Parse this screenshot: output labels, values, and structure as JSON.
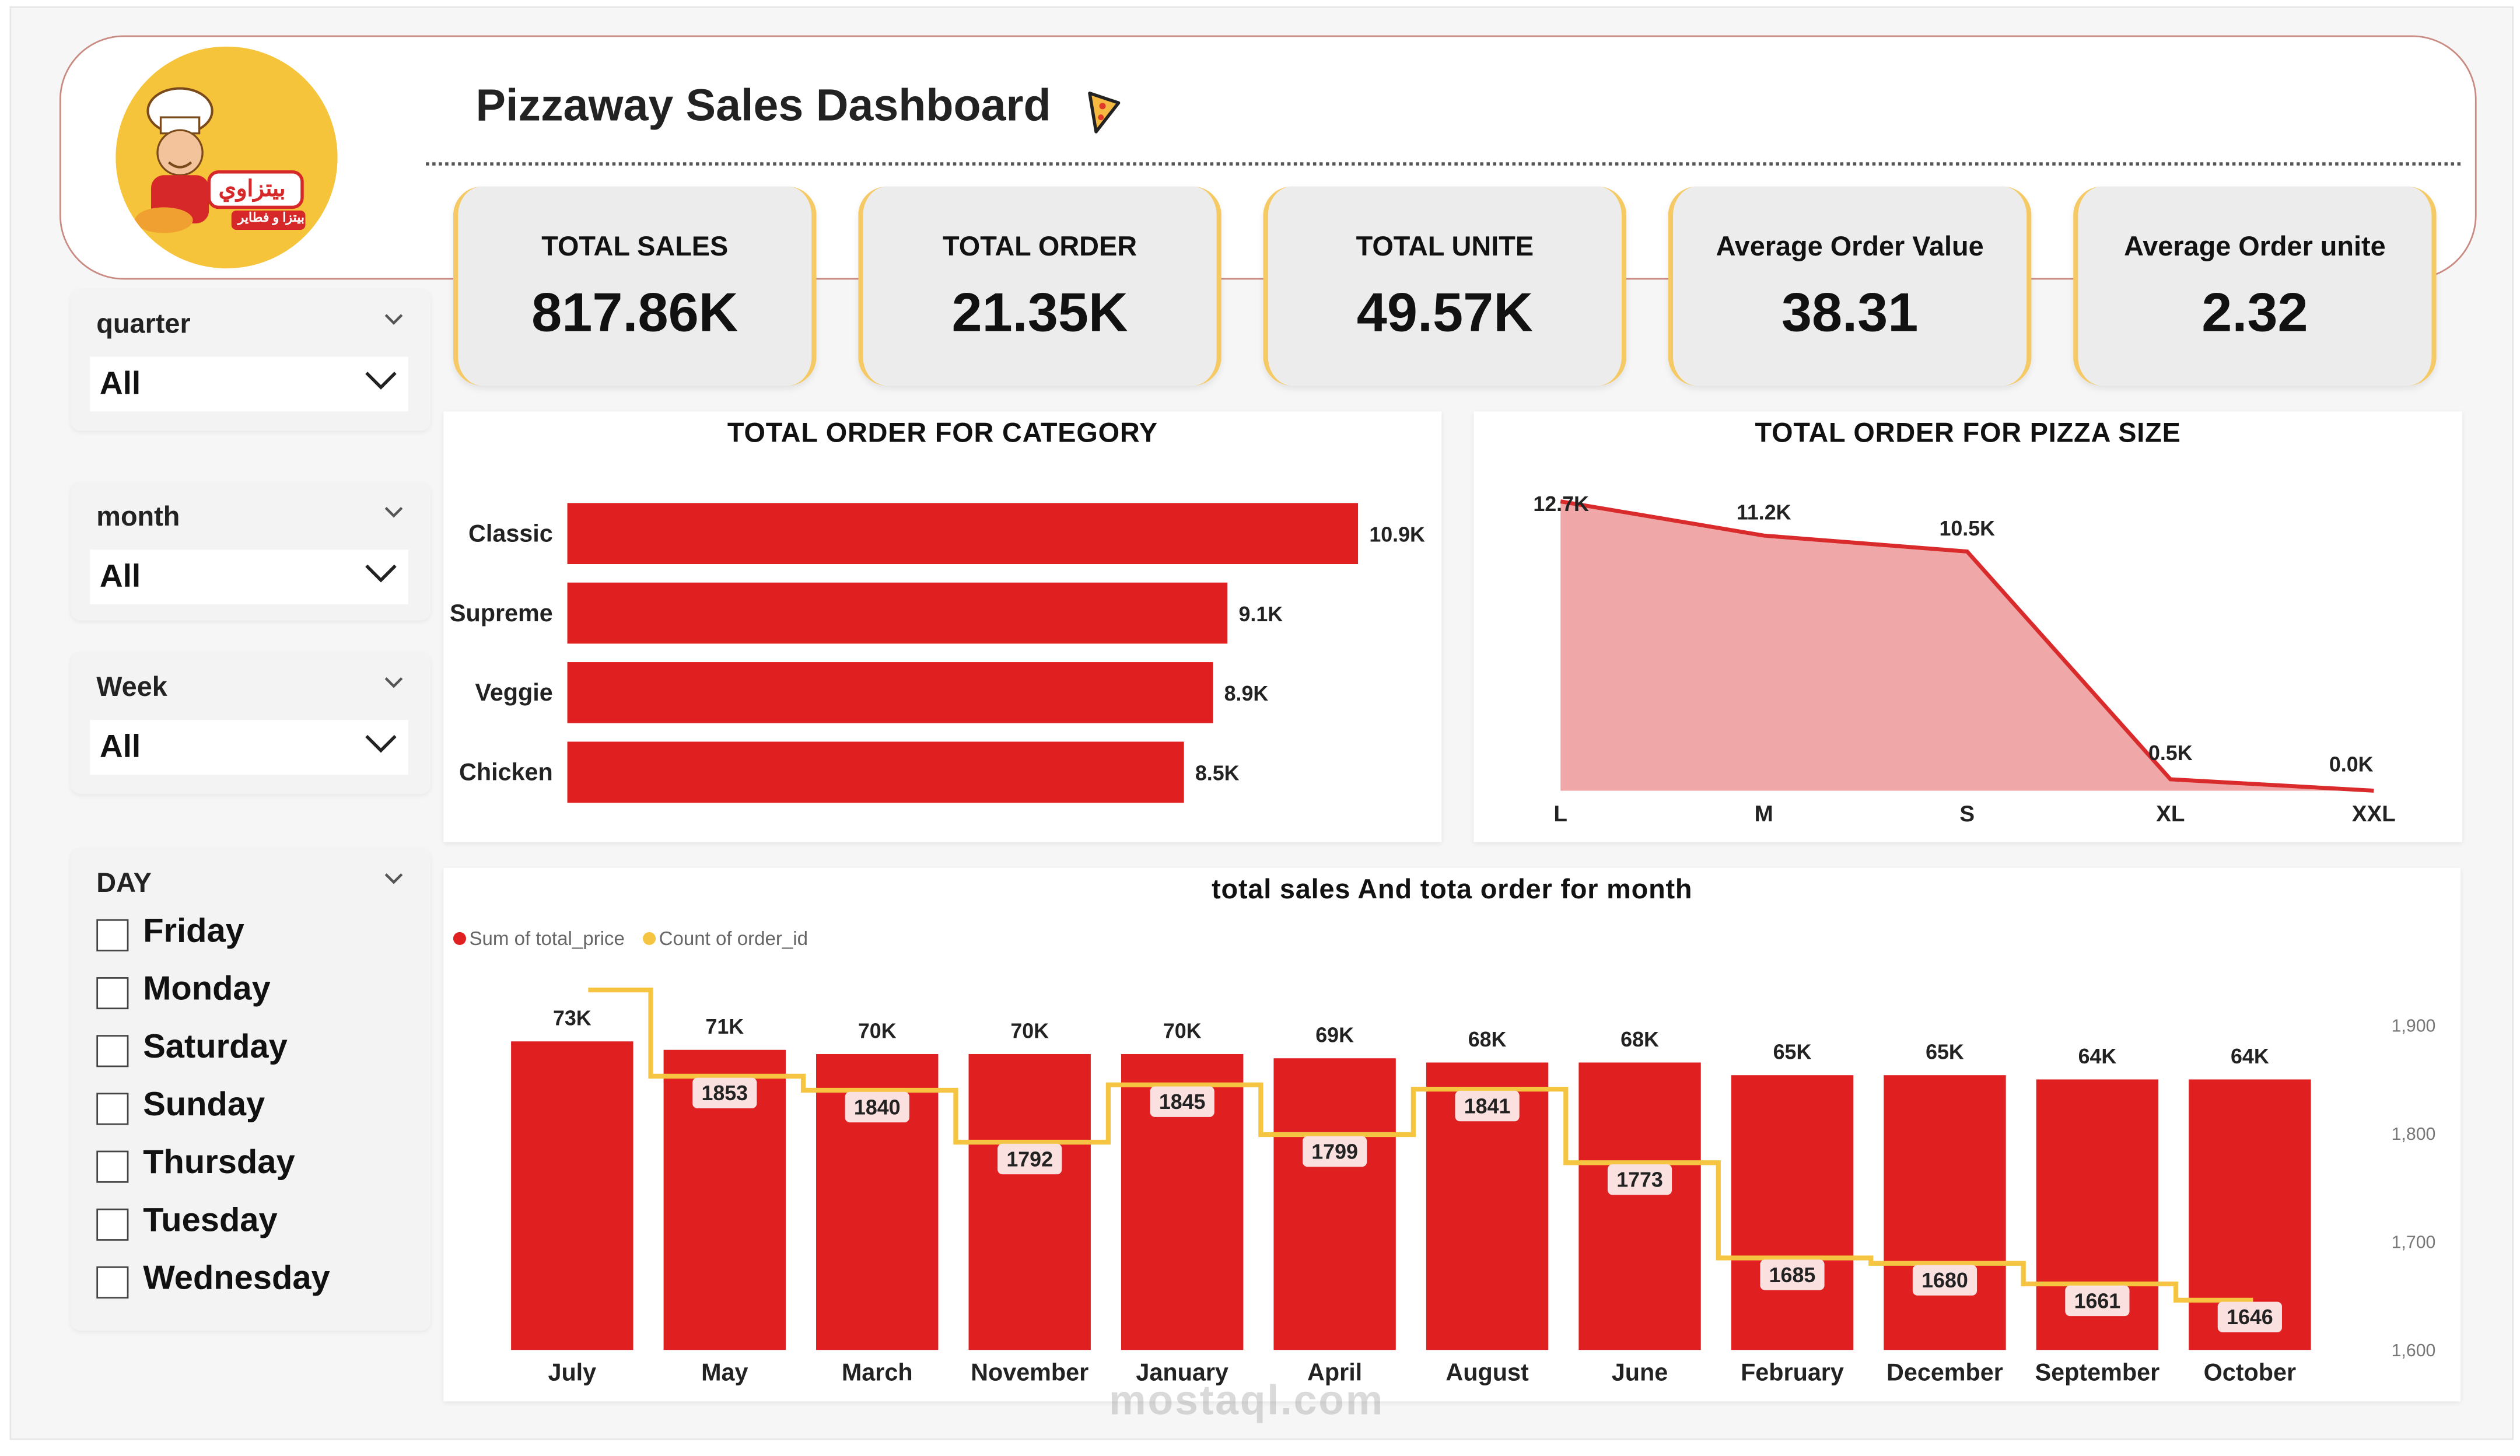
{
  "header": {
    "title": "Pizzaway Sales Dashboard",
    "logo": {
      "line1": "بيتزاوي",
      "line2": "بيتزا و فطاير"
    }
  },
  "kpis": [
    {
      "label": "TOTAL SALES",
      "value": "817.86K"
    },
    {
      "label": "TOTAL ORDER",
      "value": "21.35K"
    },
    {
      "label": "TOTAL UNITE",
      "value": "49.57K"
    },
    {
      "label": "Average Order Value",
      "value": "38.31"
    },
    {
      "label": "Average Order unite",
      "value": "2.32"
    }
  ],
  "slicers": {
    "quarter": {
      "title": "quarter",
      "value": "All"
    },
    "month": {
      "title": "month",
      "value": "All"
    },
    "week": {
      "title": "Week",
      "value": "All"
    },
    "day": {
      "title": "DAY",
      "options": [
        "Friday",
        "Monday",
        "Saturday",
        "Sunday",
        "Thursday",
        "Tuesday",
        "Wednesday"
      ]
    }
  },
  "chart_data": [
    {
      "type": "bar",
      "title": "TOTAL ORDER FOR CATEGORY",
      "categories": [
        "Classic",
        "Supreme",
        "Veggie",
        "Chicken"
      ],
      "values": [
        10.9,
        9.1,
        8.9,
        8.5
      ],
      "data_labels": [
        "10.9K",
        "9.1K",
        "8.9K",
        "8.5K"
      ],
      "unit": "K",
      "orientation": "horizontal",
      "color": "#e02020"
    },
    {
      "type": "area",
      "title": "TOTAL ORDER FOR PIZZA SIZE",
      "categories": [
        "L",
        "M",
        "S",
        "XL",
        "XXL"
      ],
      "values": [
        12.7,
        11.2,
        10.5,
        0.5,
        0.0
      ],
      "data_labels": [
        "12.7K",
        "11.2K",
        "10.5K",
        "0.5K",
        "0.0K"
      ],
      "unit": "K",
      "line_color": "#d92b2b",
      "fill_color": "#efa7a7"
    },
    {
      "type": "bar",
      "title": "total sales And tota order for month",
      "categories": [
        "July",
        "May",
        "March",
        "November",
        "January",
        "April",
        "August",
        "June",
        "February",
        "December",
        "September",
        "October"
      ],
      "series": [
        {
          "name": "Sum of total_price",
          "values": [
            73,
            71,
            70,
            70,
            70,
            69,
            68,
            68,
            65,
            65,
            64,
            64
          ],
          "data_labels": [
            "73K",
            "71K",
            "70K",
            "70K",
            "70K",
            "69K",
            "68K",
            "68K",
            "65K",
            "65K",
            "64K",
            "64K"
          ],
          "color": "#e02020"
        },
        {
          "name": "Count of order_id",
          "values": [
            null,
            1853,
            1840,
            1792,
            1845,
            1799,
            1841,
            1773,
            1685,
            1680,
            1661,
            1646
          ],
          "data_labels": [
            "",
            "1853",
            "1840",
            "1792",
            "1845",
            "1799",
            "1841",
            "1773",
            "1685",
            "1680",
            "1661",
            "1646"
          ],
          "color": "#f5c542",
          "style": "step-line"
        }
      ],
      "y2_ticks": [
        "1,900",
        "1,800",
        "1,700",
        "1,600"
      ],
      "y2_range": [
        1600,
        1900
      ]
    }
  ],
  "watermark": "mostaql.com"
}
